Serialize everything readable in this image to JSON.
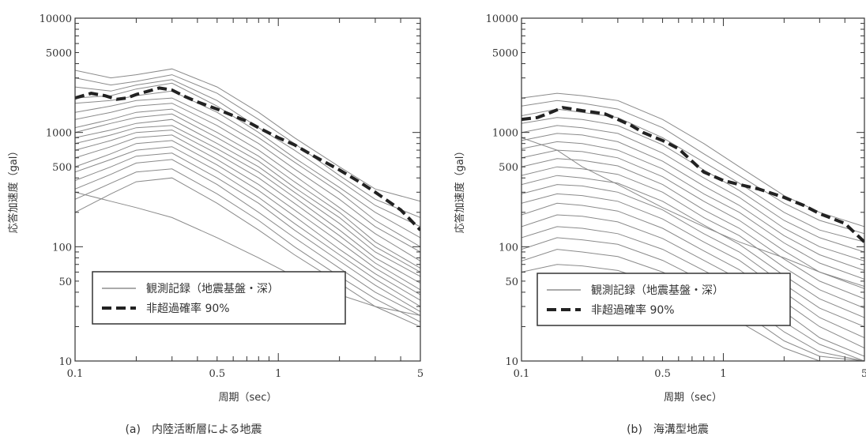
{
  "chart_data": [
    {
      "type": "line",
      "caption": "(a)　内陸活断層による地震",
      "xlabel": "周期（sec）",
      "ylabel": "応答加速度（gal）",
      "xscale": "log",
      "yscale": "log",
      "xlim": [
        0.1,
        5
      ],
      "ylim": [
        10,
        10000
      ],
      "x_ticks": [
        "0.1",
        "0.5",
        "1",
        "5"
      ],
      "y_ticks": [
        "10",
        "50",
        "100",
        "500",
        "1000",
        "5000",
        "10000"
      ],
      "legend": {
        "placement": "bottom-left",
        "entries": [
          {
            "label": "観測記録（地震基盤・深）",
            "style": "thin-gray"
          },
          {
            "label": "非超過確率 90%",
            "style": "thick-dashed"
          }
        ]
      },
      "series": [
        {
          "name": "非超過確率 90%",
          "style": "thick-dashed",
          "x": [
            0.1,
            0.12,
            0.14,
            0.16,
            0.18,
            0.2,
            0.23,
            0.26,
            0.3,
            0.35,
            0.4,
            0.5,
            0.6,
            0.7,
            0.8,
            1.0,
            1.2,
            1.5,
            2.0,
            2.5,
            3.0,
            4.0,
            5.0
          ],
          "values": [
            2000,
            2200,
            2100,
            1950,
            2000,
            2150,
            2300,
            2450,
            2350,
            2050,
            1850,
            1600,
            1400,
            1250,
            1100,
            900,
            780,
            620,
            470,
            370,
            300,
            210,
            140
          ]
        }
      ],
      "observed_records": {
        "name": "観測記録（地震基盤・深）",
        "style": "thin-gray",
        "x": [
          0.1,
          0.15,
          0.2,
          0.3,
          0.5,
          0.8,
          1.2,
          2.0,
          3.0,
          5.0
        ],
        "curves": [
          [
            3500,
            3000,
            3200,
            3600,
            2500,
            1500,
            900,
            500,
            320,
            250
          ],
          [
            3000,
            2600,
            2800,
            3200,
            2200,
            1300,
            800,
            420,
            260,
            180
          ],
          [
            2500,
            2300,
            2600,
            2900,
            1900,
            1100,
            700,
            380,
            230,
            150
          ],
          [
            2000,
            2100,
            2400,
            2700,
            1700,
            1000,
            600,
            330,
            200,
            120
          ],
          [
            1800,
            1900,
            2100,
            2300,
            1500,
            900,
            550,
            300,
            170,
            100
          ],
          [
            1500,
            1700,
            1900,
            2000,
            1300,
            800,
            480,
            260,
            150,
            90
          ],
          [
            1300,
            1500,
            1700,
            1800,
            1150,
            700,
            420,
            220,
            130,
            75
          ],
          [
            1100,
            1300,
            1500,
            1600,
            1000,
            620,
            370,
            200,
            110,
            65
          ],
          [
            1000,
            1200,
            1350,
            1450,
            900,
            560,
            330,
            180,
            100,
            60
          ],
          [
            900,
            1050,
            1200,
            1300,
            800,
            500,
            300,
            160,
            90,
            55
          ],
          [
            800,
            950,
            1100,
            1150,
            720,
            450,
            270,
            140,
            80,
            48
          ],
          [
            700,
            850,
            1000,
            1050,
            650,
            400,
            240,
            125,
            72,
            42
          ],
          [
            600,
            750,
            900,
            950,
            580,
            350,
            210,
            110,
            65,
            38
          ],
          [
            500,
            650,
            800,
            850,
            520,
            310,
            185,
            95,
            58,
            34
          ],
          [
            450,
            580,
            700,
            750,
            460,
            270,
            160,
            85,
            52,
            30
          ],
          [
            380,
            500,
            620,
            660,
            400,
            240,
            140,
            75,
            46,
            27
          ],
          [
            320,
            430,
            540,
            580,
            350,
            200,
            120,
            65,
            40,
            25
          ],
          [
            260,
            360,
            450,
            480,
            290,
            170,
            100,
            55,
            35,
            22
          ],
          [
            200,
            290,
            370,
            400,
            240,
            140,
            85,
            48,
            30,
            20
          ],
          [
            300,
            250,
            220,
            180,
            120,
            80,
            55,
            38,
            30,
            25
          ]
        ]
      }
    },
    {
      "type": "line",
      "caption": "(b)　海溝型地震",
      "xlabel": "周期（sec）",
      "ylabel": "応答加速度（gal）",
      "xscale": "log",
      "yscale": "log",
      "xlim": [
        0.1,
        5
      ],
      "ylim": [
        10,
        10000
      ],
      "x_ticks": [
        "0.1",
        "0.5",
        "1",
        "5"
      ],
      "y_ticks": [
        "10",
        "50",
        "100",
        "500",
        "1000",
        "5000",
        "10000"
      ],
      "legend": {
        "placement": "bottom-left",
        "entries": [
          {
            "label": "観測記録（地震基盤・深）",
            "style": "thin-gray"
          },
          {
            "label": "非超過確率 90%",
            "style": "thick-dashed"
          }
        ]
      },
      "series": [
        {
          "name": "非超過確率 90%",
          "style": "thick-dashed",
          "x": [
            0.1,
            0.12,
            0.14,
            0.16,
            0.18,
            0.2,
            0.23,
            0.26,
            0.3,
            0.35,
            0.4,
            0.5,
            0.6,
            0.7,
            0.8,
            1.0,
            1.2,
            1.5,
            2.0,
            2.5,
            3.0,
            4.0,
            5.0
          ],
          "values": [
            1300,
            1350,
            1500,
            1650,
            1600,
            1550,
            1500,
            1450,
            1300,
            1150,
            1000,
            850,
            720,
            560,
            450,
            380,
            350,
            320,
            270,
            230,
            195,
            160,
            110
          ]
        }
      ],
      "observed_records": {
        "name": "観測記録（地震基盤・深）",
        "style": "thin-gray",
        "x": [
          0.1,
          0.15,
          0.2,
          0.3,
          0.5,
          0.8,
          1.2,
          2.0,
          3.0,
          5.0
        ],
        "curves": [
          [
            2000,
            2200,
            2100,
            1900,
            1300,
            800,
            500,
            280,
            200,
            150
          ],
          [
            1700,
            1900,
            1800,
            1600,
            1100,
            650,
            420,
            240,
            170,
            130
          ],
          [
            1400,
            1600,
            1500,
            1350,
            900,
            550,
            360,
            200,
            140,
            110
          ],
          [
            1200,
            1350,
            1300,
            1150,
            780,
            470,
            310,
            170,
            120,
            90
          ],
          [
            1000,
            1150,
            1100,
            980,
            660,
            400,
            270,
            145,
            100,
            75
          ],
          [
            850,
            980,
            950,
            830,
            560,
            340,
            230,
            125,
            85,
            62
          ],
          [
            720,
            830,
            800,
            700,
            480,
            290,
            200,
            108,
            72,
            52
          ],
          [
            600,
            700,
            680,
            600,
            410,
            250,
            170,
            92,
            60,
            43
          ],
          [
            500,
            590,
            570,
            510,
            350,
            210,
            145,
            78,
            50,
            35
          ],
          [
            420,
            500,
            480,
            430,
            300,
            180,
            125,
            66,
            42,
            29
          ],
          [
            350,
            420,
            400,
            360,
            250,
            155,
            105,
            56,
            35,
            24
          ],
          [
            290,
            350,
            340,
            300,
            210,
            130,
            90,
            47,
            29,
            20
          ],
          [
            240,
            290,
            280,
            250,
            175,
            110,
            76,
            40,
            24,
            16
          ],
          [
            190,
            240,
            230,
            205,
            145,
            92,
            63,
            33,
            20,
            13
          ],
          [
            150,
            190,
            185,
            165,
            118,
            76,
            52,
            27,
            16,
            11
          ],
          [
            120,
            150,
            145,
            130,
            95,
            62,
            43,
            22,
            14,
            10
          ],
          [
            95,
            120,
            115,
            105,
            76,
            50,
            35,
            18,
            12,
            10
          ],
          [
            75,
            95,
            90,
            82,
            60,
            40,
            28,
            15,
            11,
            10
          ],
          [
            60,
            70,
            68,
            62,
            46,
            31,
            22,
            13,
            10,
            10
          ],
          [
            900,
            700,
            500,
            350,
            220,
            150,
            110,
            80,
            60,
            45
          ]
        ]
      }
    }
  ]
}
